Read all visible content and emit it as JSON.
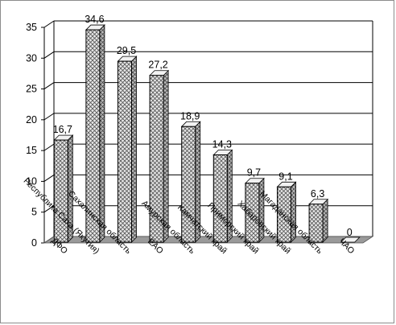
{
  "chart_data": {
    "type": "bar",
    "style": "3d-column",
    "title": "",
    "xlabel": "",
    "ylabel": "",
    "ylim": [
      0,
      35
    ],
    "yticks": [
      0,
      5,
      10,
      15,
      20,
      25,
      30,
      35
    ],
    "grid": true,
    "legend": "none",
    "categories": [
      "ДФО",
      "Республика Саха (Якутия)",
      "Сахалинская область",
      "ЕАО",
      "Амурская область",
      "Камчатский край",
      "Приморский край",
      "Хабаровский край",
      "Магаданская область",
      "ЧАО"
    ],
    "values": [
      16.7,
      34.6,
      29.5,
      27.2,
      18.9,
      14.3,
      9.7,
      9.1,
      6.3,
      0
    ],
    "data_labels": [
      "16,7",
      "34,6",
      "29,5",
      "27,2",
      "18,9",
      "14,3",
      "9,7",
      "9,1",
      "6,3",
      "0"
    ],
    "colors": {
      "bar_fill": "#e6e6e6",
      "bar_hatch": "#555555",
      "floor": "#9a9a9a",
      "grid": "#000000"
    }
  }
}
